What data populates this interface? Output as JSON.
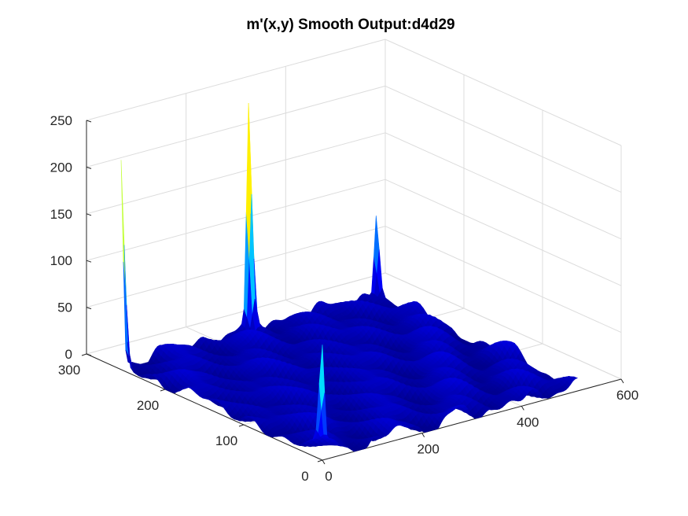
{
  "chart_data": {
    "type": "surface",
    "title": "m'(x,y) Smooth Output:d4d29",
    "xlabel": "",
    "ylabel": "",
    "zlabel": "",
    "xlim": [
      0,
      600
    ],
    "ylim": [
      0,
      300
    ],
    "zlim": [
      0,
      250
    ],
    "x_ticks": [
      0,
      200,
      400,
      600
    ],
    "y_ticks": [
      0,
      100,
      200,
      300
    ],
    "z_ticks": [
      0,
      50,
      100,
      150,
      200,
      250
    ],
    "x_tick_labels": [
      "0",
      "200",
      "400",
      "600"
    ],
    "y_tick_labels": [
      "0",
      "100",
      "200",
      "300"
    ],
    "z_tick_labels": [
      "0",
      "50",
      "100",
      "150",
      "200",
      "250"
    ],
    "grid": true,
    "colormap": "jet",
    "colormap_stops": [
      "#00008f",
      "#0000ff",
      "#0080ff",
      "#00ffff",
      "#80ff80",
      "#ffff00",
      "#ff8000",
      "#ff0000",
      "#800000"
    ],
    "surface_extent": {
      "x": [
        0,
        512
      ],
      "y": [
        0,
        256
      ]
    },
    "background_level": 20,
    "peaks": [
      {
        "x": 0,
        "y": 256,
        "z": 222
      },
      {
        "x": 256,
        "y": 256,
        "z": 240
      },
      {
        "x": 0,
        "y": 0,
        "z": 120
      },
      {
        "x": 512,
        "y": 256,
        "z": 95
      },
      {
        "x": 512,
        "y": 0,
        "z": 5
      }
    ]
  }
}
